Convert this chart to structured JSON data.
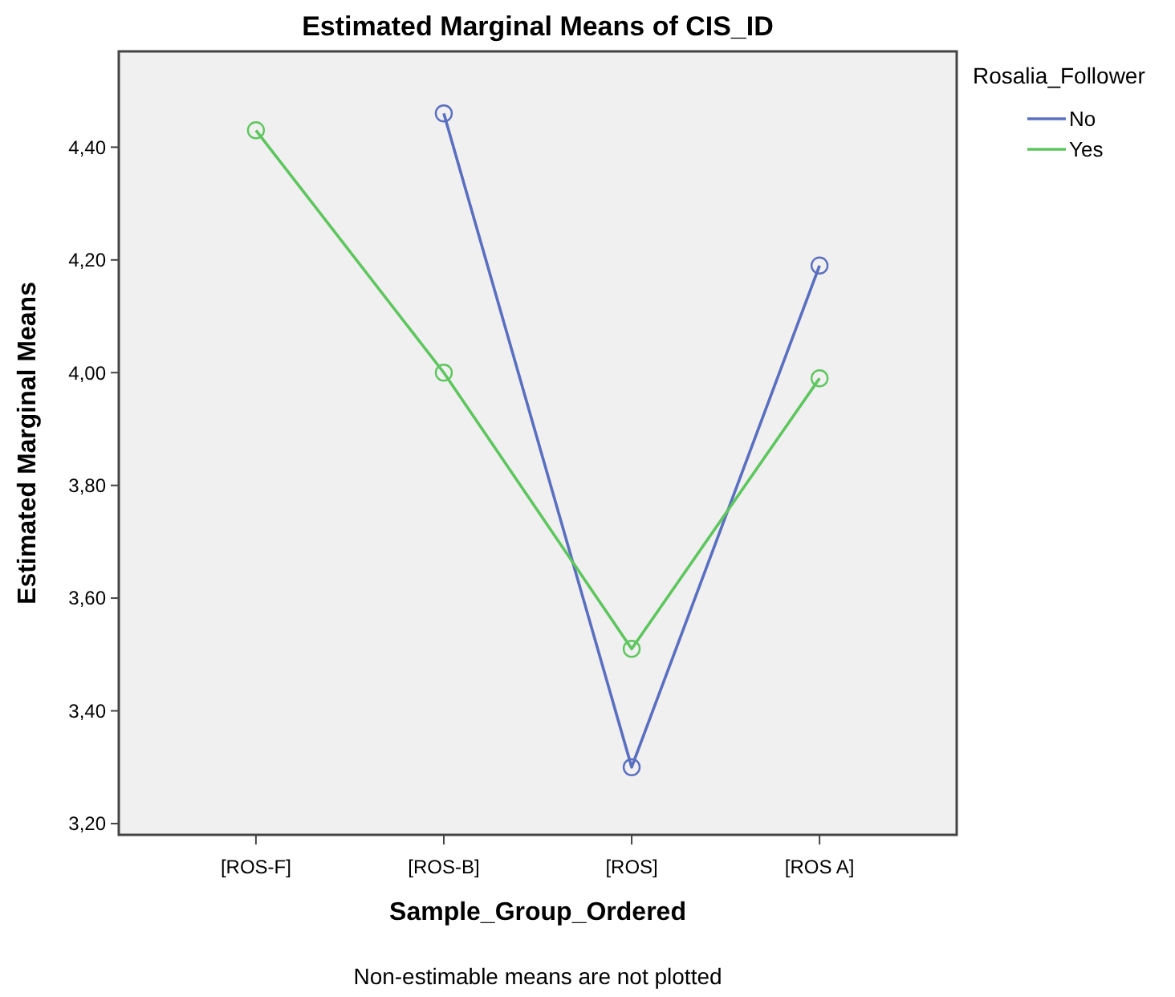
{
  "chart_data": {
    "type": "line",
    "title": "Estimated Marginal Means of CIS_ID",
    "xlabel": "Sample_Group_Ordered",
    "ylabel": "Estimated Marginal Means",
    "legend_title": "Rosalia_Follower",
    "annotations": [
      "Non-estimable means are not plotted"
    ],
    "categories": [
      "[ROS-F]",
      "[ROS-B]",
      "[ROS]",
      "[ROS A]"
    ],
    "series": [
      {
        "name": "No",
        "color": "#5a6fc0",
        "values": [
          null,
          4.46,
          3.3,
          4.19
        ]
      },
      {
        "name": "Yes",
        "color": "#5ec65e",
        "values": [
          4.43,
          4.0,
          3.51,
          3.99
        ]
      }
    ],
    "ylim": [
      3.18,
      4.57
    ],
    "yticks": [
      {
        "value": 3.2,
        "label": "3,20"
      },
      {
        "value": 3.4,
        "label": "3,40"
      },
      {
        "value": 3.6,
        "label": "3,60"
      },
      {
        "value": 3.8,
        "label": "3,80"
      },
      {
        "value": 4.0,
        "label": "4,00"
      },
      {
        "value": 4.2,
        "label": "4,20"
      },
      {
        "value": 4.4,
        "label": "4,40"
      }
    ],
    "grid": false,
    "legend": "top right",
    "marker": "circle",
    "line_style": "solid"
  }
}
